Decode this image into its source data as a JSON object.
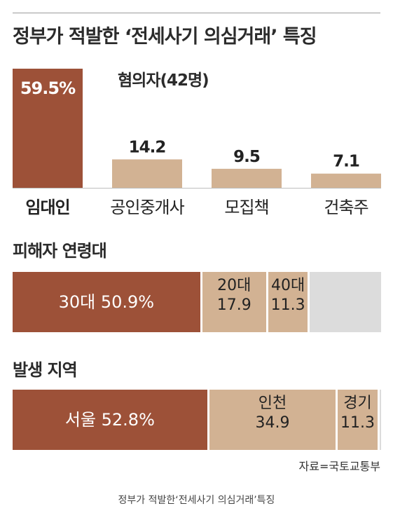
{
  "title": "정부가 적발한 ‘전세사기 의심거래’ 특징",
  "chart_data": [
    {
      "type": "bar",
      "subtitle": "혐의자(42명)",
      "categories": [
        "임대인",
        "공인중개사",
        "모집책",
        "건축주"
      ],
      "value_labels": [
        "59.5%",
        "14.2",
        "9.5",
        "7.1"
      ],
      "values": [
        59.5,
        14.2,
        9.5,
        7.1
      ],
      "ylim": [
        0,
        59.5
      ],
      "colors": [
        "#9d5138",
        "#d2b293",
        "#d2b293",
        "#d2b293"
      ]
    },
    {
      "type": "stacked_bar",
      "title": "피해자 연령대",
      "segments": [
        {
          "label": "30대 50.9%",
          "value": 50.9,
          "color": "#9d5138"
        },
        {
          "label": "20대",
          "value_label": "17.9",
          "value": 17.9,
          "color": "#d2b293"
        },
        {
          "label": "40대",
          "value_label": "11.3",
          "value": 11.3,
          "color": "#d2b293"
        },
        {
          "label": "",
          "value": 19.9,
          "color": "#dcdcdc"
        }
      ]
    },
    {
      "type": "stacked_bar",
      "title": "발생 지역",
      "segments": [
        {
          "label": "서울 52.8%",
          "value": 52.8,
          "color": "#9d5138"
        },
        {
          "label": "인천",
          "value_label": "34.9",
          "value": 34.9,
          "color": "#d2b293"
        },
        {
          "label": "경기",
          "value_label": "11.3",
          "value": 11.3,
          "color": "#d2b293"
        },
        {
          "label": "",
          "value": 1.0,
          "color": "#dcdcdc"
        }
      ]
    }
  ],
  "source": "자료=국토교통부",
  "caption": "정부가 적발한‘전세사기 의심거래’특징"
}
